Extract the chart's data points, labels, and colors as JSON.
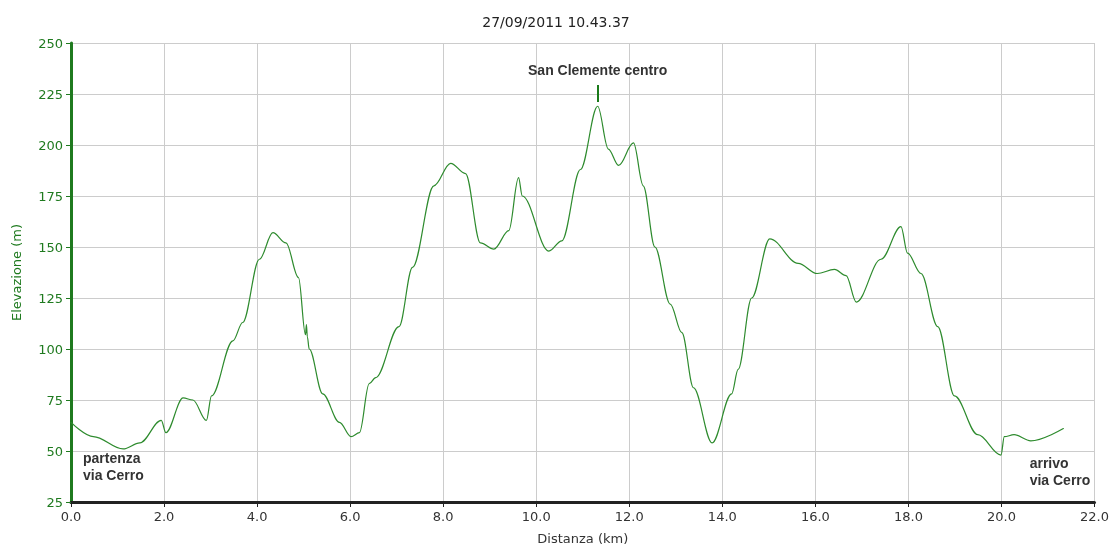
{
  "chart_data": {
    "type": "line",
    "title": "27/09/2011 10.43.37",
    "xlabel": "Distanza (km)",
    "ylabel": "Elevazione (m)",
    "xlim": [
      0,
      22
    ],
    "xticks": [
      {
        "value": 0,
        "label": "0.0"
      },
      {
        "value": 2,
        "label": "2.0"
      },
      {
        "value": 4,
        "label": "4.0"
      },
      {
        "value": 6,
        "label": "6.0"
      },
      {
        "value": 8,
        "label": "8.0"
      },
      {
        "value": 10,
        "label": "10.0"
      },
      {
        "value": 12,
        "label": "12.0"
      },
      {
        "value": 14,
        "label": "14.0"
      },
      {
        "value": 16,
        "label": "16.0"
      },
      {
        "value": 18,
        "label": "18.0"
      },
      {
        "value": 20,
        "label": "20.0"
      },
      {
        "value": 22,
        "label": "22.0"
      }
    ],
    "ylim": [
      25,
      250
    ],
    "yticks": [
      25,
      50,
      75,
      100,
      125,
      150,
      175,
      200,
      225,
      250
    ],
    "grid": true,
    "marker": "none",
    "line_style": "solid",
    "series": [
      {
        "color": "#2e8b2e",
        "x": [
          0,
          0.48,
          1.12,
          1.48,
          1.94,
          2.04,
          2.41,
          2.62,
          2.91,
          3.02,
          3.48,
          3.69,
          4.05,
          4.34,
          4.62,
          4.89,
          5.04,
          5.06,
          5.08,
          5.12,
          5.41,
          5.77,
          6.02,
          6.2,
          6.41,
          6.55,
          7.05,
          7.34,
          7.8,
          8.16,
          8.48,
          8.8,
          9.09,
          9.41,
          9.62,
          9.7,
          10.27,
          10.55,
          10.95,
          11.32,
          11.55,
          11.77,
          12.09,
          12.3,
          12.55,
          12.88,
          13.13,
          13.38,
          13.78,
          14.2,
          14.34,
          14.63,
          15.02,
          15.63,
          16.04,
          16.41,
          16.66,
          16.88,
          17.41,
          17.84,
          17.98,
          18.27,
          18.63,
          18.99,
          19.49,
          19.99,
          20.06,
          20.27,
          20.63,
          21.33
        ],
        "values": [
          64,
          57,
          51,
          54,
          65,
          59,
          76,
          75,
          65,
          77,
          104,
          113,
          144,
          157,
          152,
          135,
          107,
          112,
          106,
          100,
          78,
          64,
          57,
          59,
          83,
          86,
          111,
          140,
          180,
          191,
          186,
          152,
          149,
          158,
          184,
          175,
          148,
          153,
          188,
          219,
          198,
          190,
          201,
          180,
          150,
          122,
          108,
          81,
          54,
          78,
          90,
          125,
          154,
          142,
          137,
          139,
          136,
          123,
          144,
          160,
          147,
          137,
          111,
          77,
          58,
          48,
          57,
          58,
          55,
          61
        ]
      }
    ],
    "annotations": [
      {
        "text": "San Clemente centro",
        "x": 11.32,
        "y": 219
      },
      {
        "text": "partenza\nvia Cerro",
        "x": 0,
        "y": 64
      },
      {
        "text": "arrivo\nvia Cerro",
        "x": 21.33,
        "y": 61
      }
    ]
  }
}
